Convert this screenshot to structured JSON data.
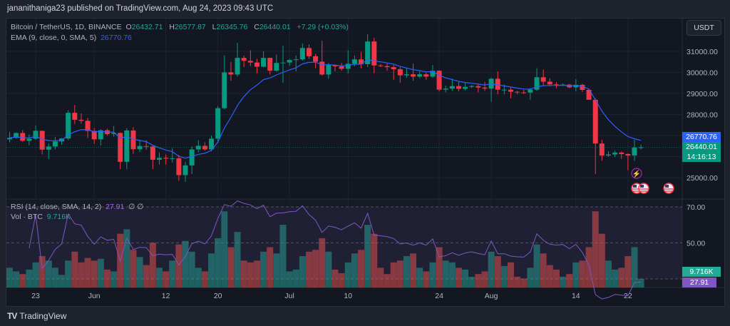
{
  "header": {
    "published": "jananithaniga23 published on TradingView.com, Aug 24, 2023 09:43 UTC"
  },
  "legend": {
    "symbol": "Bitcoin / TetherUS, 1D, BINANCE",
    "o_label": "O",
    "o": "26432.71",
    "h_label": "H",
    "h": "26577.87",
    "l_label": "L",
    "l": "26345.76",
    "c_label": "C",
    "c": "26440.01",
    "change": "+7.29 (+0.03%)",
    "ema_label": "EMA (9, close, 0, SMA, 5)",
    "ema_value": "26770.76",
    "rsi_label": "RSI (14, close, SMA, 14, 2)",
    "rsi_value": "27.91",
    "rsi_extra": "∅ ∅",
    "vol_label": "Vol · BTC",
    "vol_value": "9.716K"
  },
  "currency_button": "USDT",
  "price_axis": {
    "ticks": [
      "31000.00",
      "30000.00",
      "29000.00",
      "28000.00",
      "25000.00"
    ],
    "tick_values": [
      31000,
      30000,
      29000,
      28000,
      25000
    ]
  },
  "rsi_axis": {
    "ticks": [
      "70.00",
      "50.00"
    ],
    "tick_values": [
      70,
      50
    ],
    "band": [
      30,
      70
    ]
  },
  "tags": {
    "ema": "26770.76",
    "last": "26440.01",
    "countdown": "14:16:13",
    "vol": "9.716K",
    "rsi": "27.91"
  },
  "time_axis": [
    {
      "label": "23",
      "date": "2023-05-23"
    },
    {
      "label": "Jun",
      "date": "2023-06-01"
    },
    {
      "label": "12",
      "date": "2023-06-12"
    },
    {
      "label": "20",
      "date": "2023-06-20"
    },
    {
      "label": "Jul",
      "date": "2023-07-01"
    },
    {
      "label": "10",
      "date": "2023-07-10"
    },
    {
      "label": "24",
      "date": "2023-07-24"
    },
    {
      "label": "Aug",
      "date": "2023-08-01"
    },
    {
      "label": "14",
      "date": "2023-08-14"
    },
    {
      "label": "22",
      "date": "2023-08-22"
    }
  ],
  "icons": {
    "events": [
      "lightning-icon",
      "us-flag-icon",
      "us-flag-icon",
      "us-flag-icon"
    ]
  },
  "footer": {
    "brand": "TradingView"
  },
  "colors": {
    "up": "#089981",
    "down": "#f23645",
    "ema": "#2962ff",
    "rsi": "#7e57c2",
    "bg": "#131722"
  },
  "chart_data": {
    "type": "candlestick",
    "start_date": "2023-05-19",
    "end_date": "2023-08-24",
    "ohlc": [
      [
        26820,
        27180,
        26680,
        26890
      ],
      [
        26890,
        27150,
        26850,
        27120
      ],
      [
        27120,
        27260,
        26700,
        26750
      ],
      [
        26750,
        27050,
        26540,
        26850
      ],
      [
        26850,
        27480,
        26800,
        27225
      ],
      [
        27225,
        27230,
        26100,
        26330
      ],
      [
        26330,
        26630,
        25880,
        26480
      ],
      [
        26480,
        26930,
        26340,
        26720
      ],
      [
        26720,
        26880,
        26560,
        26860
      ],
      [
        26860,
        28200,
        26780,
        28080
      ],
      [
        28080,
        28450,
        27550,
        27750
      ],
      [
        27750,
        28050,
        27560,
        27700
      ],
      [
        27700,
        27830,
        26880,
        27220
      ],
      [
        27220,
        27350,
        26610,
        26820
      ],
      [
        26820,
        27300,
        26530,
        27250
      ],
      [
        27250,
        27330,
        26990,
        27070
      ],
      [
        27070,
        27450,
        26950,
        27120
      ],
      [
        27120,
        27150,
        25400,
        25750
      ],
      [
        25750,
        27350,
        25400,
        27240
      ],
      [
        27240,
        27400,
        26130,
        26350
      ],
      [
        26350,
        26800,
        26210,
        26500
      ],
      [
        26500,
        26780,
        26330,
        26480
      ],
      [
        26480,
        26540,
        25400,
        25850
      ],
      [
        25850,
        26200,
        25620,
        25940
      ],
      [
        25940,
        26100,
        25620,
        25900
      ],
      [
        25900,
        26400,
        25720,
        25920
      ],
      [
        25920,
        26080,
        24850,
        25120
      ],
      [
        25120,
        25750,
        24800,
        25580
      ],
      [
        25580,
        26480,
        25170,
        26340
      ],
      [
        26340,
        26780,
        26200,
        26510
      ],
      [
        26510,
        26680,
        26280,
        26340
      ],
      [
        26340,
        27000,
        26250,
        26850
      ],
      [
        26850,
        28400,
        26650,
        28300
      ],
      [
        28300,
        30800,
        28250,
        30000
      ],
      [
        30000,
        30500,
        29600,
        29900
      ],
      [
        29900,
        31400,
        29800,
        30690
      ],
      [
        30690,
        30800,
        30250,
        30550
      ],
      [
        30550,
        31050,
        30300,
        30470
      ],
      [
        30470,
        30650,
        29950,
        30270
      ],
      [
        30270,
        31000,
        30240,
        30690
      ],
      [
        30690,
        30700,
        29900,
        30080
      ],
      [
        30080,
        30850,
        30040,
        30450
      ],
      [
        30450,
        31280,
        29500,
        30470
      ],
      [
        30470,
        30650,
        30320,
        30590
      ],
      [
        30590,
        30800,
        30050,
        30620
      ],
      [
        30620,
        31380,
        30560,
        31160
      ],
      [
        31160,
        31330,
        30640,
        30770
      ],
      [
        30770,
        30880,
        30200,
        30510
      ],
      [
        30510,
        31500,
        29850,
        29900
      ],
      [
        29900,
        30450,
        29700,
        30350
      ],
      [
        30350,
        30380,
        30050,
        30290
      ],
      [
        30290,
        30450,
        30080,
        30170
      ],
      [
        30170,
        31050,
        29950,
        30410
      ],
      [
        30410,
        30800,
        30290,
        30620
      ],
      [
        30620,
        30980,
        30200,
        30390
      ],
      [
        30390,
        31820,
        30250,
        31470
      ],
      [
        31470,
        31650,
        29950,
        30330
      ],
      [
        30330,
        30400,
        30250,
        30300
      ],
      [
        30300,
        30450,
        30070,
        30250
      ],
      [
        30250,
        30350,
        29650,
        30150
      ],
      [
        30150,
        30250,
        29500,
        29860
      ],
      [
        29860,
        30200,
        29750,
        29910
      ],
      [
        29910,
        30420,
        29600,
        29800
      ],
      [
        29800,
        30050,
        29720,
        29910
      ],
      [
        29910,
        29990,
        29650,
        29800
      ],
      [
        29800,
        30350,
        29750,
        30080
      ],
      [
        30080,
        30100,
        29100,
        29180
      ],
      [
        29180,
        29380,
        29050,
        29230
      ],
      [
        29230,
        29700,
        29120,
        29350
      ],
      [
        29350,
        29580,
        29100,
        29220
      ],
      [
        29220,
        29520,
        29140,
        29310
      ],
      [
        29310,
        29400,
        29260,
        29350
      ],
      [
        29350,
        29450,
        29050,
        29280
      ],
      [
        29280,
        29550,
        29120,
        29230
      ],
      [
        29230,
        29750,
        28600,
        29700
      ],
      [
        29700,
        30050,
        28950,
        29180
      ],
      [
        29180,
        29420,
        28950,
        29180
      ],
      [
        29180,
        29320,
        28760,
        29080
      ],
      [
        29080,
        29120,
        28960,
        29050
      ],
      [
        29050,
        29170,
        28980,
        29040
      ],
      [
        29040,
        29250,
        28700,
        29180
      ],
      [
        29180,
        30200,
        29130,
        29770
      ],
      [
        29770,
        30130,
        29350,
        29560
      ],
      [
        29560,
        29720,
        29340,
        29430
      ],
      [
        29430,
        29540,
        29250,
        29400
      ],
      [
        29400,
        29480,
        29350,
        29420
      ],
      [
        29420,
        29450,
        29250,
        29290
      ],
      [
        29290,
        29680,
        29100,
        29410
      ],
      [
        29410,
        29450,
        29070,
        29170
      ],
      [
        29170,
        29220,
        28700,
        28700
      ],
      [
        28700,
        28780,
        25170,
        26620
      ],
      [
        26620,
        26800,
        25800,
        26050
      ],
      [
        26050,
        26250,
        25980,
        26100
      ],
      [
        26100,
        26280,
        25980,
        26190
      ],
      [
        26190,
        26250,
        25900,
        26120
      ],
      [
        26120,
        26150,
        25350,
        26050
      ],
      [
        26050,
        26800,
        25800,
        26430
      ],
      [
        26432.71,
        26577.87,
        26345.76,
        26440.01
      ]
    ],
    "volume_k": [
      22,
      18,
      15,
      20,
      28,
      35,
      30,
      22,
      14,
      30,
      40,
      28,
      33,
      30,
      32,
      20,
      18,
      60,
      65,
      42,
      34,
      25,
      50,
      22,
      18,
      30,
      48,
      52,
      40,
      22,
      18,
      38,
      55,
      85,
      45,
      62,
      30,
      28,
      30,
      40,
      45,
      38,
      70,
      18,
      20,
      35,
      40,
      42,
      55,
      40,
      20,
      16,
      28,
      38,
      42,
      70,
      60,
      22,
      15,
      28,
      30,
      35,
      38,
      22,
      18,
      28,
      45,
      30,
      28,
      22,
      20,
      12,
      15,
      18,
      40,
      35,
      24,
      28,
      12,
      10,
      22,
      48,
      38,
      25,
      20,
      12,
      15,
      28,
      30,
      45,
      85,
      60,
      30,
      20,
      22,
      35,
      45,
      9.716
    ],
    "indicators": [
      "EMA 9",
      "RSI 14",
      "Volume"
    ]
  }
}
